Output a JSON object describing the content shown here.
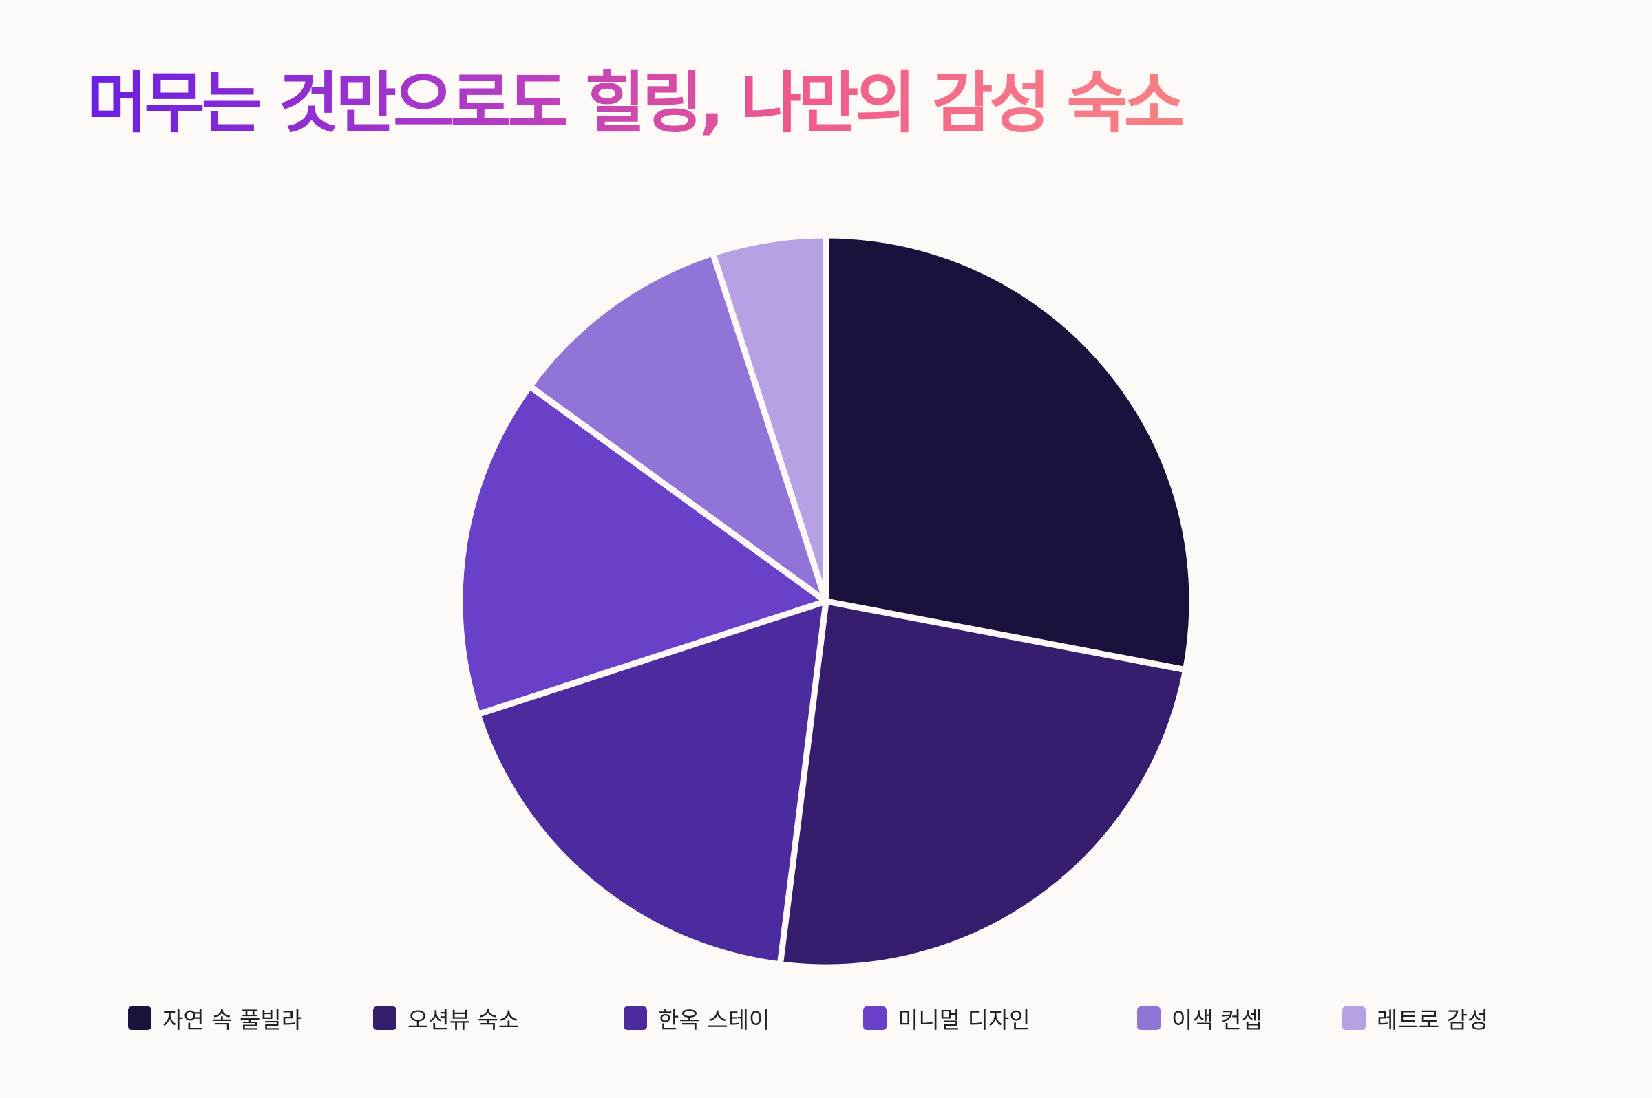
{
  "title": "머무는 것만으로도 힐링, 나만의 감성 숙소",
  "chart_data": {
    "type": "pie",
    "categories": [
      "자연 속 풀빌라",
      "오션뷰 숙소",
      "한옥 스테이",
      "미니멀 디자인",
      "이색 컨셉",
      "레트로 감성"
    ],
    "values": [
      28,
      24,
      18,
      15,
      10,
      5
    ],
    "colors": [
      "#1c103d",
      "#371d6e",
      "#4c2b9e",
      "#6941c9",
      "#9074d8",
      "#b6a1e5"
    ],
    "start_angle": "12 o'clock",
    "direction": "clockwise",
    "legend_position": "bottom"
  }
}
